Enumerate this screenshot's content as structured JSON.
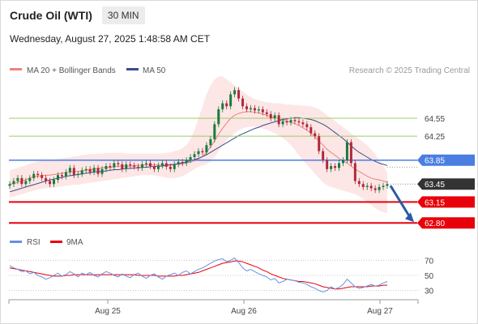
{
  "header": {
    "title": "Crude Oil (WTI)",
    "timeframe": "30 MIN",
    "timestamp": "Wednesday, August 27, 2025 1:48:58 AM CET"
  },
  "legend": {
    "ma20_label": "MA 20 + Bollinger Bands",
    "ma50_label": "MA 50",
    "credit": "Research © 2025 Trading Central",
    "rsi_label": "RSI",
    "ma9_label": "9MA"
  },
  "colors": {
    "ma20": "#f08080",
    "bollinger_fill": "#fde3e3",
    "ma50": "#3b4d8c",
    "candle_up": "#1a7a3a",
    "candle_down": "#b0283a",
    "support": "#e8000b",
    "pivot": "#4a7ee0",
    "resistance_soft": "#9acd6a",
    "current_price": "#333333",
    "rsi": "#6a8fe0",
    "rsi_ma": "#e8000b",
    "arrow": "#2b5aa8"
  },
  "chart_data": [
    {
      "type": "candlestick",
      "title": "",
      "xlabel": "",
      "ylabel": "",
      "ylim": [
        62.6,
        65.2
      ],
      "x_tick_labels": [
        "Aug 25",
        "Aug 26",
        "Aug 27"
      ],
      "grid": false,
      "series": [
        {
          "name": "price",
          "close": [
            63.45,
            63.5,
            63.55,
            63.45,
            63.5,
            63.55,
            63.62,
            63.6,
            63.55,
            63.5,
            63.45,
            63.52,
            63.6,
            63.58,
            63.65,
            63.72,
            63.6,
            63.62,
            63.68,
            63.7,
            63.65,
            63.72,
            63.62,
            63.7,
            63.75,
            63.73,
            63.8,
            63.78,
            63.7,
            63.78,
            63.76,
            63.74,
            63.72,
            63.78,
            63.8,
            63.75,
            63.7,
            63.76,
            63.8,
            63.74,
            63.7,
            63.78,
            63.82,
            63.8,
            63.85,
            63.9,
            63.95,
            64.0,
            63.98,
            64.1,
            64.2,
            64.45,
            64.7,
            64.8,
            64.75,
            64.95,
            65.02,
            64.88,
            64.75,
            64.7,
            64.72,
            64.68,
            64.7,
            64.65,
            64.62,
            64.55,
            64.6,
            64.45,
            64.5,
            64.48,
            64.52,
            64.5,
            64.48,
            64.45,
            64.4,
            64.3,
            64.25,
            64.0,
            63.85,
            63.7,
            63.75,
            63.72,
            63.8,
            63.85,
            64.15,
            63.8,
            63.5,
            63.45,
            63.4,
            63.42,
            63.38,
            63.35,
            63.4,
            63.42,
            63.45
          ],
          "ma20": [
            63.45,
            63.46,
            63.48,
            63.5,
            63.52,
            63.55,
            63.57,
            63.58,
            63.59,
            63.6,
            63.6,
            63.61,
            63.62,
            63.63,
            63.64,
            63.65,
            63.66,
            63.66,
            63.67,
            63.68,
            63.69,
            63.7,
            63.71,
            63.72,
            63.73,
            63.73,
            63.74,
            63.75,
            63.75,
            63.75,
            63.75,
            63.76,
            63.76,
            63.77,
            63.77,
            63.77,
            63.77,
            63.77,
            63.77,
            63.77,
            63.78,
            63.78,
            63.78,
            63.79,
            63.8,
            63.82,
            63.84,
            63.87,
            63.91,
            63.98,
            64.07,
            64.17,
            64.28,
            64.38,
            64.47,
            64.55,
            64.6,
            64.63,
            64.65,
            64.66,
            64.66,
            64.65,
            64.64,
            64.62,
            64.6,
            64.58,
            64.56,
            64.54,
            64.52,
            64.5,
            64.48,
            64.46,
            64.43,
            64.39,
            64.35,
            64.3,
            64.24,
            64.17,
            64.1,
            64.03,
            63.98,
            63.93,
            63.88,
            63.84,
            63.8,
            63.75,
            63.7,
            63.66,
            63.62,
            63.58,
            63.55,
            63.53,
            63.52,
            63.5,
            63.48
          ],
          "ma50": [
            63.32,
            63.34,
            63.36,
            63.38,
            63.4,
            63.42,
            63.44,
            63.46,
            63.48,
            63.5,
            63.52,
            63.53,
            63.55,
            63.56,
            63.58,
            63.59,
            63.6,
            63.61,
            63.62,
            63.63,
            63.64,
            63.65,
            63.66,
            63.66,
            63.67,
            63.68,
            63.69,
            63.69,
            63.7,
            63.71,
            63.71,
            63.72,
            63.72,
            63.73,
            63.73,
            63.74,
            63.74,
            63.75,
            63.75,
            63.76,
            63.77,
            63.78,
            63.79,
            63.8,
            63.82,
            63.84,
            63.86,
            63.88,
            63.91,
            63.94,
            63.98,
            64.02,
            64.06,
            64.1,
            64.14,
            64.18,
            64.22,
            64.26,
            64.29,
            64.32,
            64.35,
            64.38,
            64.4,
            64.43,
            64.45,
            64.47,
            64.49,
            64.51,
            64.53,
            64.54,
            64.55,
            64.56,
            64.56,
            64.55,
            64.54,
            64.53,
            64.51,
            64.48,
            64.45,
            64.41,
            64.36,
            64.31,
            64.26,
            64.21,
            64.15,
            64.09,
            64.03,
            63.98,
            63.94,
            63.9,
            63.86,
            63.83,
            63.8,
            63.78,
            63.76
          ],
          "upper_band": [
            63.68,
            63.7,
            63.72,
            63.74,
            63.76,
            63.79,
            63.81,
            63.83,
            63.84,
            63.85,
            63.85,
            63.86,
            63.87,
            63.88,
            63.89,
            63.9,
            63.91,
            63.92,
            63.93,
            63.94,
            63.95,
            63.95,
            63.96,
            63.96,
            63.97,
            63.97,
            63.97,
            63.97,
            63.97,
            63.96,
            63.96,
            63.96,
            63.96,
            63.96,
            63.96,
            63.96,
            63.96,
            63.96,
            63.96,
            63.97,
            63.98,
            64.0,
            64.02,
            64.05,
            64.1,
            64.2,
            64.35,
            64.55,
            64.75,
            64.95,
            65.1,
            65.2,
            65.25,
            65.25,
            65.2,
            65.15,
            65.1,
            65.05,
            65.0,
            64.95,
            64.9,
            64.87,
            64.85,
            64.83,
            64.82,
            64.81,
            64.8,
            64.8,
            64.79,
            64.78,
            64.78,
            64.77,
            64.77,
            64.76,
            64.76,
            64.75,
            64.73,
            64.7,
            64.65,
            64.6,
            64.55,
            64.5,
            64.45,
            64.4,
            64.35,
            64.3,
            64.25,
            64.2,
            64.15,
            64.1,
            64.03,
            63.95,
            63.85,
            63.75,
            63.65
          ],
          "lower_band": [
            63.22,
            63.24,
            63.26,
            63.28,
            63.3,
            63.32,
            63.34,
            63.36,
            63.37,
            63.38,
            63.38,
            63.39,
            63.4,
            63.41,
            63.42,
            63.43,
            63.44,
            63.44,
            63.45,
            63.46,
            63.47,
            63.48,
            63.49,
            63.5,
            63.51,
            63.52,
            63.53,
            63.54,
            63.55,
            63.56,
            63.57,
            63.58,
            63.59,
            63.6,
            63.6,
            63.6,
            63.6,
            63.58,
            63.57,
            63.55,
            63.55,
            63.55,
            63.56,
            63.58,
            63.62,
            63.66,
            63.7,
            63.74,
            63.76,
            63.78,
            63.83,
            63.9,
            64.0,
            64.1,
            64.18,
            64.25,
            64.3,
            64.35,
            64.38,
            64.4,
            64.41,
            64.41,
            64.4,
            64.38,
            64.36,
            64.33,
            64.3,
            64.26,
            64.22,
            64.17,
            64.1,
            64.02,
            63.93,
            63.85,
            63.77,
            63.7,
            63.62,
            63.55,
            63.48,
            63.43,
            63.4,
            63.38,
            63.36,
            63.34,
            63.32,
            63.3,
            63.28,
            63.25,
            63.2,
            63.15,
            63.1,
            63.05,
            63.0,
            62.98,
            62.96
          ]
        }
      ],
      "levels": [
        {
          "label": "64.55",
          "value": 64.55,
          "kind": "resistance"
        },
        {
          "label": "64.25",
          "value": 64.25,
          "kind": "resistance"
        },
        {
          "label": "63.85",
          "value": 63.85,
          "kind": "pivot"
        },
        {
          "label": "63.45",
          "value": 63.45,
          "kind": "current"
        },
        {
          "label": "63.15",
          "value": 63.15,
          "kind": "support"
        },
        {
          "label": "62.80",
          "value": 62.8,
          "kind": "support"
        }
      ],
      "projection_arrow": {
        "from": 63.45,
        "to": 62.8
      }
    },
    {
      "type": "line",
      "title": "",
      "xlabel": "",
      "ylabel": "",
      "ylim": [
        20,
        80
      ],
      "y_tick_labels": [
        "70",
        "50",
        "30"
      ],
      "y_ticks": [
        70,
        50,
        30
      ],
      "grid": true,
      "series": [
        {
          "name": "RSI",
          "values": [
            63,
            60,
            58,
            55,
            56,
            52,
            54,
            50,
            48,
            45,
            47,
            50,
            53,
            49,
            51,
            55,
            52,
            48,
            53,
            51,
            54,
            50,
            48,
            52,
            55,
            53,
            50,
            48,
            52,
            49,
            47,
            51,
            53,
            49,
            46,
            50,
            52,
            48,
            45,
            49,
            51,
            53,
            50,
            54,
            56,
            52,
            55,
            58,
            60,
            63,
            66,
            69,
            71,
            72,
            68,
            70,
            73,
            67,
            60,
            56,
            58,
            55,
            52,
            50,
            48,
            44,
            46,
            40,
            42,
            45,
            44,
            43,
            41,
            40,
            38,
            35,
            33,
            30,
            28,
            30,
            35,
            32,
            34,
            38,
            45,
            40,
            35,
            33,
            34,
            36,
            38,
            36,
            37,
            40,
            42
          ]
        },
        {
          "name": "9MA",
          "values": [
            60,
            59,
            58,
            57,
            56,
            55,
            54,
            53,
            52,
            51,
            50,
            49,
            49,
            49,
            50,
            50,
            51,
            51,
            51,
            51,
            51,
            51,
            51,
            51,
            51,
            51,
            51,
            51,
            51,
            51,
            51,
            51,
            50,
            50,
            50,
            50,
            50,
            49,
            49,
            49,
            49,
            49,
            50,
            50,
            51,
            52,
            53,
            54,
            56,
            58,
            60,
            62,
            64,
            66,
            67,
            68,
            69,
            69,
            68,
            66,
            64,
            62,
            60,
            57,
            55,
            52,
            50,
            48,
            46,
            45,
            44,
            43,
            42,
            42,
            41,
            40,
            39,
            37,
            35,
            34,
            33,
            32,
            32,
            33,
            34,
            35,
            35,
            35,
            35,
            35,
            36,
            36,
            36,
            37,
            37
          ]
        }
      ]
    }
  ]
}
